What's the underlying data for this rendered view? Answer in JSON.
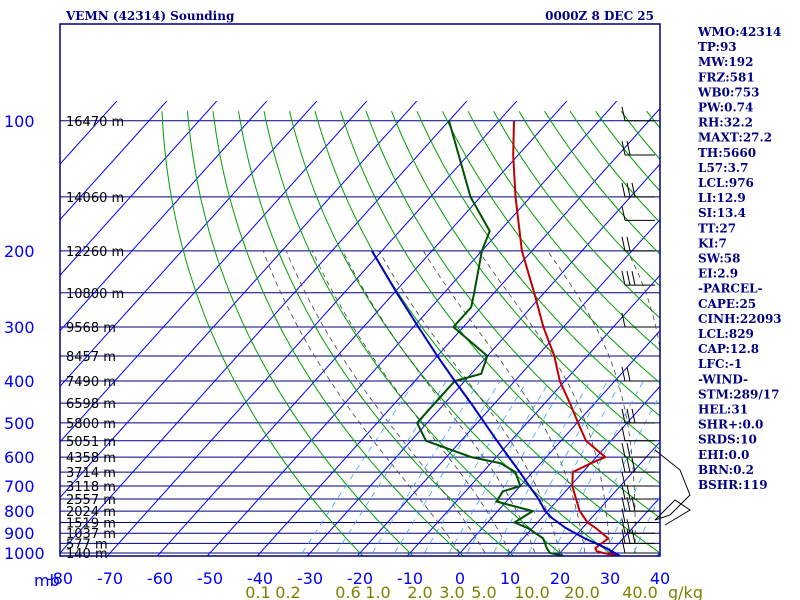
{
  "header": {
    "station": "VEMN (42314) Sounding",
    "time": "0000Z  8 DEC 25"
  },
  "indices": [
    "WMO:42314",
    "TP:93",
    "MW:192",
    "FRZ:581",
    "WB0:753",
    "PW:0.74",
    "RH:32.2",
    "MAXT:27.2",
    "TH:5660",
    "L57:3.7",
    "LCL:976",
    "LI:12.9",
    "SI:13.4",
    "TT:27",
    "KI:7",
    "SW:58",
    "EI:2.9",
    "-PARCEL-",
    "CAPE:25",
    "CINH:22093",
    "LCL:829",
    "CAP:12.8",
    "LFC:-1",
    "-WIND-",
    "STM:289/17",
    "HEL:31",
    "SHR+:0.0",
    "SRDS:10",
    "EHI:0.0",
    "BRN:0.2",
    "BSHR:119"
  ],
  "colors": {
    "frame": "#000080",
    "isobar": "#000080",
    "isotherm": "#0000ff",
    "dry_adiabat": "#00a000",
    "moist_adiabat": "#404040",
    "mixing_ratio": "#40a0ff",
    "temperature": "#c00000",
    "dewpoint": "#005000",
    "parcel": "#0000c0",
    "wind": "#000000"
  },
  "chart_data": {
    "type": "line",
    "title": "VEMN (42314) Sounding",
    "xlabel": "",
    "ylabel": "mb",
    "x_unit_label": "g/kg",
    "p_ticks": [
      100,
      200,
      300,
      400,
      500,
      600,
      700,
      800,
      900,
      1000
    ],
    "t_ticks": [
      -80,
      -70,
      -60,
      -50,
      -40,
      -30,
      -20,
      -10,
      0,
      10,
      20,
      30,
      40
    ],
    "mixing_ratio_ticks": [
      "0.1",
      "0.2",
      "0.6",
      "1.0",
      "2.0",
      "3.0",
      "5.0",
      "10.0",
      "20.0",
      "40.0"
    ],
    "height_labels": [
      {
        "p": 100,
        "label": "16470 m"
      },
      {
        "p": 150,
        "label": "14060 m"
      },
      {
        "p": 200,
        "label": "12260 m"
      },
      {
        "p": 250,
        "label": "10800 m"
      },
      {
        "p": 300,
        "label": "9568 m"
      },
      {
        "p": 350,
        "label": "8457 m"
      },
      {
        "p": 400,
        "label": "7490 m"
      },
      {
        "p": 450,
        "label": "6598 m"
      },
      {
        "p": 500,
        "label": "5800 m"
      },
      {
        "p": 550,
        "label": "5051 m"
      },
      {
        "p": 600,
        "label": "4358 m"
      },
      {
        "p": 650,
        "label": "3714 m"
      },
      {
        "p": 700,
        "label": "3118 m"
      },
      {
        "p": 750,
        "label": "2557 m"
      },
      {
        "p": 800,
        "label": "2024 m"
      },
      {
        "p": 850,
        "label": "1519 m"
      },
      {
        "p": 900,
        "label": "1037 m"
      },
      {
        "p": 950,
        "label": "577 m"
      },
      {
        "p": 1000,
        "label": "140 m"
      }
    ],
    "series": [
      {
        "key": "temperature",
        "points": [
          [
            1014,
            22.4
          ],
          [
            1000,
            18.6
          ],
          [
            990,
            17.0
          ],
          [
            975,
            16.2
          ],
          [
            925,
            17.0
          ],
          [
            875,
            12.6
          ],
          [
            850,
            10.0
          ],
          [
            800,
            6.4
          ],
          [
            750,
            3.5
          ],
          [
            700,
            0.4
          ],
          [
            650,
            -2.0
          ],
          [
            620,
            0.0
          ],
          [
            600,
            1.8
          ],
          [
            550,
            -5.0
          ],
          [
            500,
            -9.8
          ],
          [
            450,
            -15.0
          ],
          [
            400,
            -21.0
          ],
          [
            350,
            -26.6
          ],
          [
            300,
            -34.0
          ],
          [
            250,
            -42.0
          ],
          [
            200,
            -52.0
          ],
          [
            150,
            -63.0
          ],
          [
            120,
            -71.0
          ],
          [
            100,
            -77.0
          ]
        ]
      },
      {
        "key": "dewpoint",
        "points": [
          [
            1014,
            11.0
          ],
          [
            1000,
            8.0
          ],
          [
            975,
            6.5
          ],
          [
            925,
            4.0
          ],
          [
            875,
            -1.0
          ],
          [
            850,
            -4.6
          ],
          [
            800,
            -3.0
          ],
          [
            760,
            -12.0
          ],
          [
            720,
            -12.5
          ],
          [
            700,
            -10.0
          ],
          [
            650,
            -13.5
          ],
          [
            620,
            -18.0
          ],
          [
            600,
            -25.0
          ],
          [
            550,
            -37.0
          ],
          [
            500,
            -42.0
          ],
          [
            450,
            -42.0
          ],
          [
            400,
            -42.0
          ],
          [
            385,
            -38.0
          ],
          [
            350,
            -40.0
          ],
          [
            300,
            -52.0
          ],
          [
            270,
            -52.0
          ],
          [
            250,
            -54.0
          ],
          [
            200,
            -60.0
          ],
          [
            180,
            -62.0
          ],
          [
            150,
            -72.0
          ],
          [
            100,
            -90.0
          ]
        ]
      },
      {
        "key": "parcel",
        "points": [
          [
            1014,
            22.4
          ],
          [
            975,
            18.4
          ],
          [
            925,
            12.3
          ],
          [
            875,
            6.6
          ],
          [
            829,
            2.0
          ],
          [
            800,
            -0.5
          ],
          [
            750,
            -4.0
          ],
          [
            700,
            -8.2
          ],
          [
            650,
            -12.6
          ],
          [
            600,
            -17.5
          ],
          [
            550,
            -22.8
          ],
          [
            500,
            -28.5
          ],
          [
            450,
            -34.8
          ],
          [
            400,
            -42.0
          ],
          [
            350,
            -50.0
          ],
          [
            300,
            -59.0
          ],
          [
            250,
            -69.5
          ],
          [
            200,
            -82.0
          ]
        ]
      }
    ],
    "wind_levels": [
      100,
      120,
      150,
      170,
      200,
      240,
      300,
      400,
      500,
      550,
      600,
      650,
      700,
      750,
      800,
      850,
      900,
      950,
      1000
    ]
  }
}
